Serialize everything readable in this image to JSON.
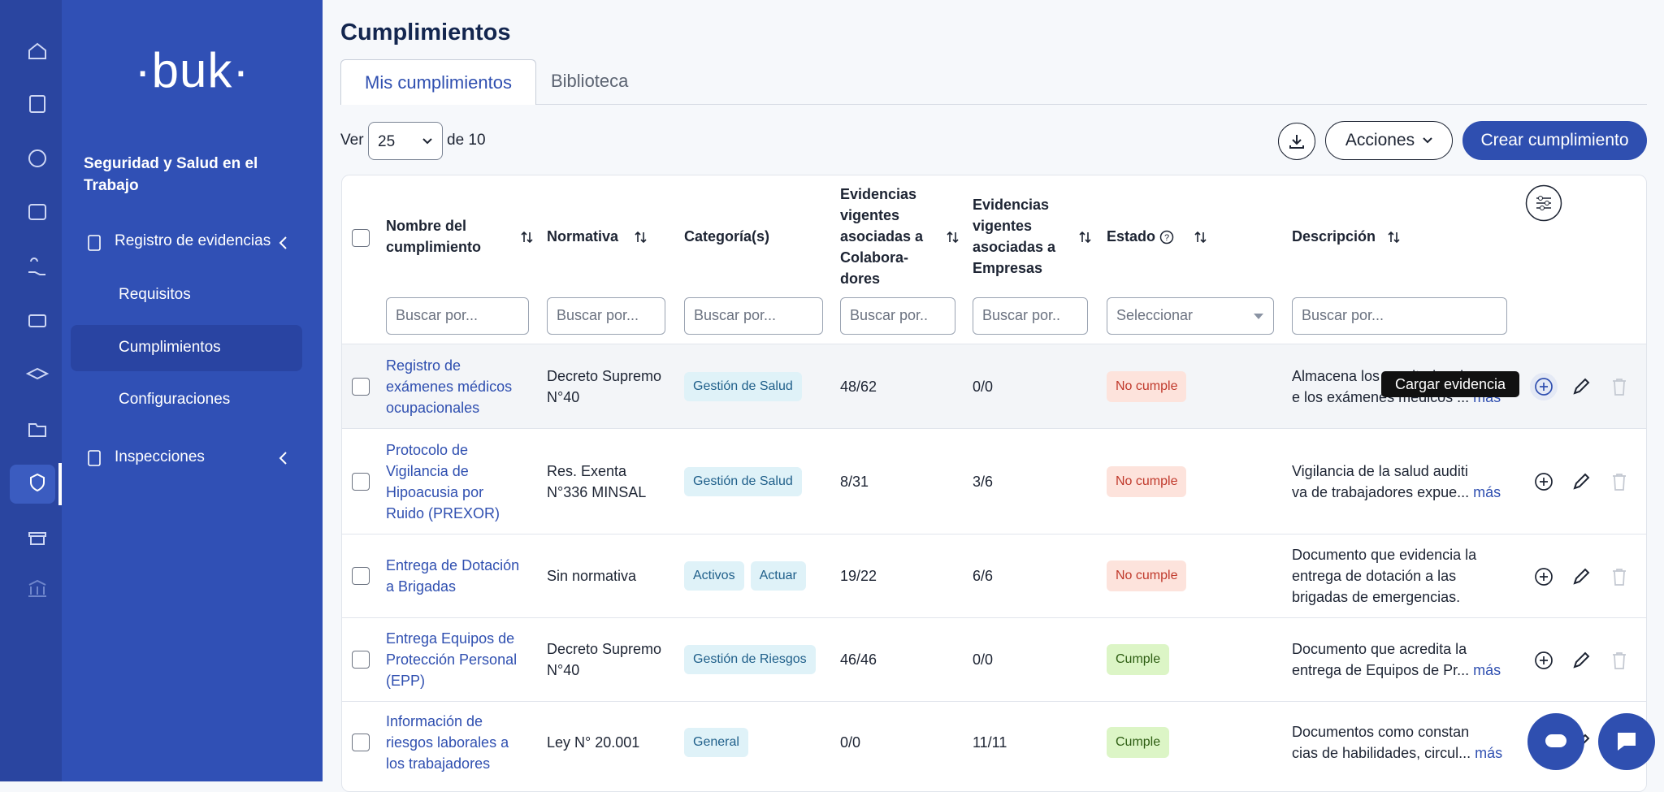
{
  "sidebar": {
    "logo": "·buk·",
    "module": "Seguridad y Salud en el Trabajo",
    "menu": [
      {
        "label": "Registro de evidencias",
        "children": [
          "Requisitos",
          "Cumplimientos",
          "Configuraciones"
        ]
      },
      {
        "label": "Inspecciones"
      }
    ]
  },
  "page": {
    "title": "Cumplimientos",
    "tabs": [
      "Mis cumplimientos",
      "Biblioteca"
    ],
    "toolbar": {
      "show_label": "Ver",
      "page_size": "25",
      "of_label": "de 10",
      "actions": "Acciones",
      "create": "Crear cumplimiento"
    }
  },
  "table": {
    "columns": [
      "Nombre del cumplimiento",
      "Normativa",
      "Categoría(s)",
      "Evidencias vigentes asociadas a Colabora-dores",
      "Evidencias vigentes asociadas a Empresas",
      "Estado",
      "Descripción"
    ],
    "filters": [
      "Buscar por...",
      "Buscar por...",
      "Buscar por...",
      "Buscar por..",
      "Buscar por..",
      "Seleccionar",
      "Buscar por..."
    ],
    "rows": [
      {
        "name": "Registro de exámenes médicos ocupacionales",
        "normativa": "Decreto Supremo N°40",
        "categories": [
          "Gestión de Salud"
        ],
        "col_evidence": "48/62",
        "company_evidence": "0/0",
        "status": "No cumple",
        "description": [
          "Almacena los resultados d",
          "e los exámenes médicos ..."
        ],
        "more": "más"
      },
      {
        "name": "Protocolo de Vigilancia de Hipoacusia por Ruido (PREXOR)",
        "normativa": "Res. Exenta N°336 MINSAL",
        "categories": [
          "Gestión de Salud"
        ],
        "col_evidence": "8/31",
        "company_evidence": "3/6",
        "status": "No cumple",
        "description": [
          "Vigilancia de la salud auditi",
          "va de trabajadores expue..."
        ],
        "more": "más"
      },
      {
        "name": "Entrega de Dotación a Brigadas",
        "normativa": "Sin normativa",
        "categories": [
          "Activos",
          "Actuar"
        ],
        "col_evidence": "19/22",
        "company_evidence": "6/6",
        "status": "No cumple",
        "description": [
          "Documento que evidencia la",
          "entrega de dotación a las",
          "brigadas de emergencias."
        ]
      },
      {
        "name": "Entrega Equipos de Protección Personal (EPP)",
        "normativa": "Decreto Supremo N°40",
        "categories": [
          "Gestión de Riesgos"
        ],
        "col_evidence": "46/46",
        "company_evidence": "0/0",
        "status": "Cumple",
        "description": [
          "Documento que acredita la",
          "entrega de Equipos de Pr..."
        ],
        "more": "más"
      },
      {
        "name": "Información de riesgos laborales a los trabajadores",
        "normativa": "Ley N° 20.001",
        "categories": [
          "General"
        ],
        "col_evidence": "0/0",
        "company_evidence": "11/11",
        "status": "Cumple",
        "description": [
          "Documentos como constan",
          "cias de habilidades, circul..."
        ],
        "more": "más"
      }
    ]
  },
  "tooltip": "Cargar evidencia"
}
